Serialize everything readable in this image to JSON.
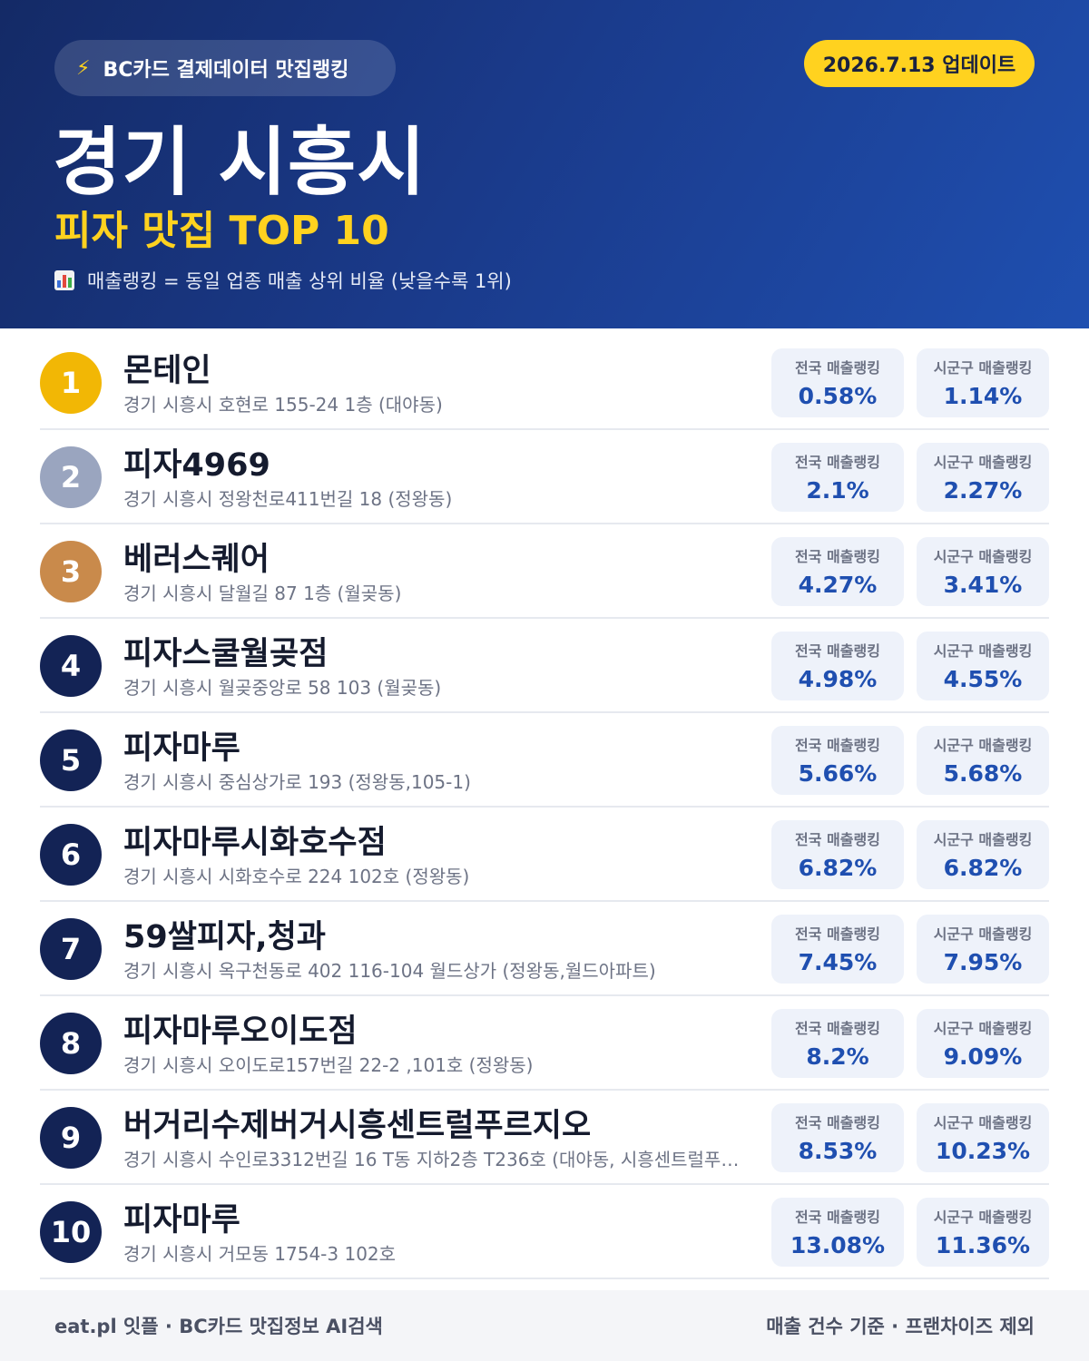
{
  "header": {
    "source_icon": "lightning-icon",
    "source_label": "BC카드 결제데이터 맛집랭킹",
    "update_label": "2026.7.13 업데이트",
    "city": "경기 시흥시",
    "subtitle": "피자 맛집 TOP 10",
    "note_icon": "bar-chart-icon",
    "note": "매출랭킹 = 동일 업종 매출 상위 비율 (낮을수록 1위)"
  },
  "labels": {
    "national": "전국 매출랭킹",
    "local": "시군구 매출랭킹"
  },
  "colors": {
    "header_dark": "#142a66",
    "header_light": "#1f4fb0",
    "accent_yellow": "#ffd21f",
    "gold": "#f2b705",
    "silver": "#9aa5bf",
    "bronze": "#c98a4b",
    "rank_default": "#132355",
    "value_blue": "#1f4fb0"
  },
  "restaurants": [
    {
      "rank": "1",
      "name": "몬테인",
      "address": "경기 시흥시 호현로 155-24 1층 (대야동)",
      "national": "0.58%",
      "local": "1.14%"
    },
    {
      "rank": "2",
      "name": "피자4969",
      "address": "경기 시흥시 정왕천로411번길 18 (정왕동)",
      "national": "2.1%",
      "local": "2.27%"
    },
    {
      "rank": "3",
      "name": "베러스퀘어",
      "address": "경기 시흥시 달월길 87 1층 (월곶동)",
      "national": "4.27%",
      "local": "3.41%"
    },
    {
      "rank": "4",
      "name": "피자스쿨월곶점",
      "address": "경기 시흥시 월곶중앙로 58 103 (월곶동)",
      "national": "4.98%",
      "local": "4.55%"
    },
    {
      "rank": "5",
      "name": "피자마루",
      "address": "경기 시흥시 중심상가로 193 (정왕동,105-1)",
      "national": "5.66%",
      "local": "5.68%"
    },
    {
      "rank": "6",
      "name": "피자마루시화호수점",
      "address": "경기 시흥시 시화호수로 224 102호 (정왕동)",
      "national": "6.82%",
      "local": "6.82%"
    },
    {
      "rank": "7",
      "name": "59쌀피자,청과",
      "address": "경기 시흥시 옥구천동로 402 116-104 월드상가 (정왕동,월드아파트)",
      "national": "7.45%",
      "local": "7.95%"
    },
    {
      "rank": "8",
      "name": "피자마루오이도점",
      "address": "경기 시흥시 오이도로157번길 22-2 ,101호 (정왕동)",
      "national": "8.2%",
      "local": "9.09%"
    },
    {
      "rank": "9",
      "name": "버거리수제버거시흥센트럴푸르지오",
      "address": "경기 시흥시 수인로3312번길 16 T동 지하2층 T236호 (대야동, 시흥센트럴푸르…",
      "national": "8.53%",
      "local": "10.23%"
    },
    {
      "rank": "10",
      "name": "피자마루",
      "address": "경기 시흥시 거모동 1754-3 102호",
      "national": "13.08%",
      "local": "11.36%"
    }
  ],
  "footer": {
    "left": "eat.pl 잇플 · BC카드 맛집정보 AI검색",
    "right": "매출 건수 기준 · 프랜차이즈 제외"
  }
}
